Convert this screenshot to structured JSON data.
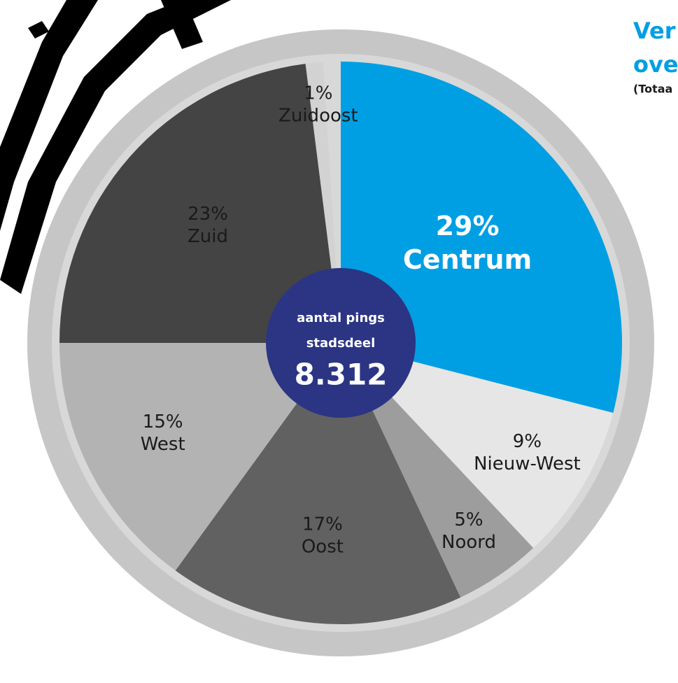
{
  "chart_data": {
    "type": "pie",
    "title_lines": [
      "Ver",
      "ove"
    ],
    "subtitle": "(Totaa",
    "center_label_lines": [
      "aantal pings",
      "stadsdeel"
    ],
    "center_value": "8.312",
    "categories": [
      "Centrum",
      "Nieuw-West",
      "Noord",
      "Oost",
      "West",
      "Zuid",
      "Zuidoost"
    ],
    "values": [
      29,
      9,
      5,
      17,
      15,
      23,
      1
    ],
    "value_labels": [
      "29%",
      "9%",
      "5%",
      "17%",
      "15%",
      "23%",
      "1%"
    ],
    "colors": [
      "#009fe3",
      "#e6e6e6",
      "#9d9d9d",
      "#616161",
      "#b3b3b3",
      "#454444",
      "#d2d2d2"
    ],
    "label_colors": [
      "#ffffff",
      "#1a1a1a",
      "#1a1a1a",
      "#1a1a1a",
      "#1a1a1a",
      "#1a1a1a",
      "#1a1a1a"
    ]
  }
}
